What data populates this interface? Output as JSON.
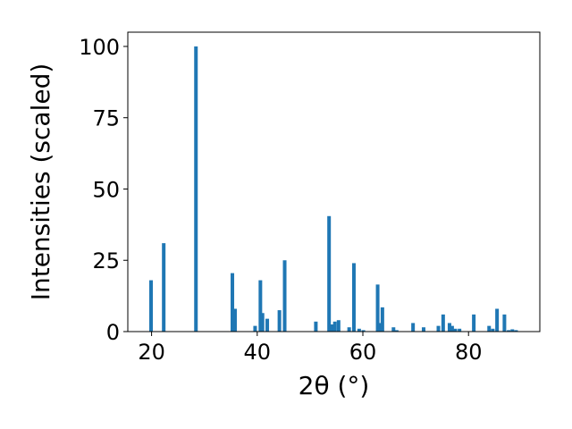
{
  "chart_data": {
    "type": "bar",
    "title": "",
    "xlabel": "2θ (°)",
    "ylabel": "Intensities (scaled)",
    "xlim": [
      15.5,
      93.5
    ],
    "ylim": [
      0,
      105
    ],
    "xticks": [
      20,
      40,
      60,
      80
    ],
    "yticks": [
      0,
      25,
      50,
      75,
      100
    ],
    "grid": false,
    "legend": "none",
    "bar_color": "#1f77b4",
    "x": [
      19.9,
      22.3,
      28.4,
      35.3,
      35.8,
      39.6,
      40.6,
      41.0,
      41.9,
      44.2,
      45.2,
      51.1,
      53.6,
      54.1,
      54.7,
      55.4,
      57.4,
      58.3,
      59.3,
      60.1,
      62.8,
      63.4,
      63.7,
      65.8,
      66.4,
      69.5,
      71.5,
      74.3,
      75.2,
      76.4,
      76.9,
      77.5,
      78.3,
      81.0,
      83.9,
      84.6,
      85.4,
      86.8,
      87.6,
      88.3,
      89.0
    ],
    "values": [
      18,
      31,
      100,
      20.5,
      8,
      2,
      18,
      6.5,
      4.5,
      7.5,
      25,
      3.5,
      40.5,
      2.5,
      3.5,
      4,
      1.5,
      24,
      1,
      0.5,
      16.5,
      3,
      8.5,
      1.5,
      0.5,
      3,
      1.5,
      2,
      6,
      3,
      2,
      1,
      1,
      6,
      2,
      1,
      8,
      6,
      0.5,
      0.8,
      0.5
    ]
  }
}
